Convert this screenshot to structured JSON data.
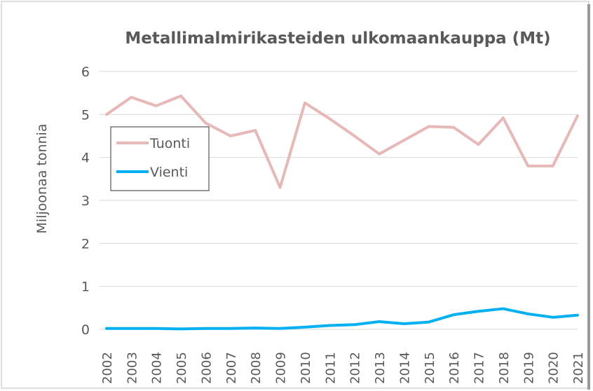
{
  "chart_data": {
    "type": "line",
    "title": "Metallimalmirikasteiden ulkomaankauppa (Mt)",
    "y_label": "Miljoonaa tonnia",
    "categories": [
      "2002",
      "2003",
      "2004",
      "2005",
      "2006",
      "2007",
      "2008",
      "2009",
      "2010",
      "2011",
      "2012",
      "2013",
      "2014",
      "2015",
      "2016",
      "2017",
      "2018",
      "2019",
      "2020",
      "2021"
    ],
    "series": [
      {
        "name": "Tuonti",
        "color": "#e6b9b8",
        "values": [
          5.0,
          5.4,
          5.2,
          5.43,
          4.8,
          4.5,
          4.63,
          3.3,
          5.27,
          4.9,
          4.5,
          4.08,
          4.4,
          4.72,
          4.7,
          4.3,
          4.92,
          3.8,
          3.8,
          4.97
        ]
      },
      {
        "name": "Vienti",
        "color": "#00b0f0",
        "values": [
          0.02,
          0.02,
          0.02,
          0.01,
          0.02,
          0.02,
          0.03,
          0.02,
          0.05,
          0.09,
          0.11,
          0.18,
          0.13,
          0.17,
          0.34,
          0.42,
          0.48,
          0.36,
          0.28,
          0.33
        ]
      }
    ],
    "ylim": [
      0,
      6
    ],
    "yticks": [
      0,
      1,
      2,
      3,
      4,
      5,
      6
    ],
    "grid": true,
    "legend": "left"
  }
}
